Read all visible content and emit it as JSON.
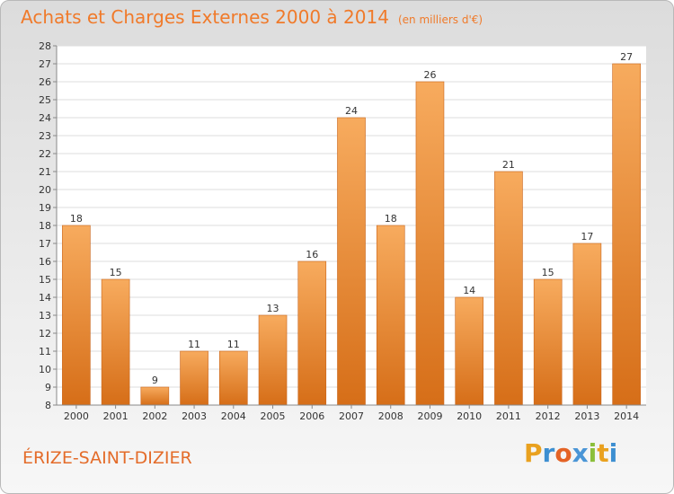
{
  "title": "Achats et Charges Externes 2000 à 2014",
  "subtitle": "(en milliers d'€)",
  "location": "ÉRIZE-SAINT-DIZIER",
  "brand": {
    "letters": [
      "P",
      "r",
      "o",
      "x",
      "i",
      "t",
      "i"
    ],
    "colors": [
      "#e9a11f",
      "#3d8fd1",
      "#e46325",
      "#4a95d6",
      "#8bbf3a",
      "#e9a11f",
      "#3d8fd1"
    ]
  },
  "colors": {
    "bar": "#ef8a2e",
    "bar_light": "#f7ab5e",
    "bar_dark": "#d66e18",
    "title": "#f07a2a",
    "axis_text": "#333333"
  },
  "chart_data": {
    "type": "bar",
    "categories": [
      "2000",
      "2001",
      "2002",
      "2003",
      "2004",
      "2005",
      "2006",
      "2007",
      "2008",
      "2009",
      "2010",
      "2011",
      "2012",
      "2013",
      "2014"
    ],
    "values": [
      18,
      15,
      9,
      11,
      11,
      13,
      16,
      24,
      18,
      26,
      14,
      21,
      15,
      17,
      27
    ],
    "ylim": [
      8,
      28
    ],
    "yticks": [
      8,
      9,
      10,
      11,
      12,
      13,
      14,
      15,
      16,
      17,
      18,
      19,
      20,
      21,
      22,
      23,
      24,
      25,
      26,
      27,
      28
    ],
    "grid": true,
    "xlabel": "",
    "ylabel": ""
  }
}
